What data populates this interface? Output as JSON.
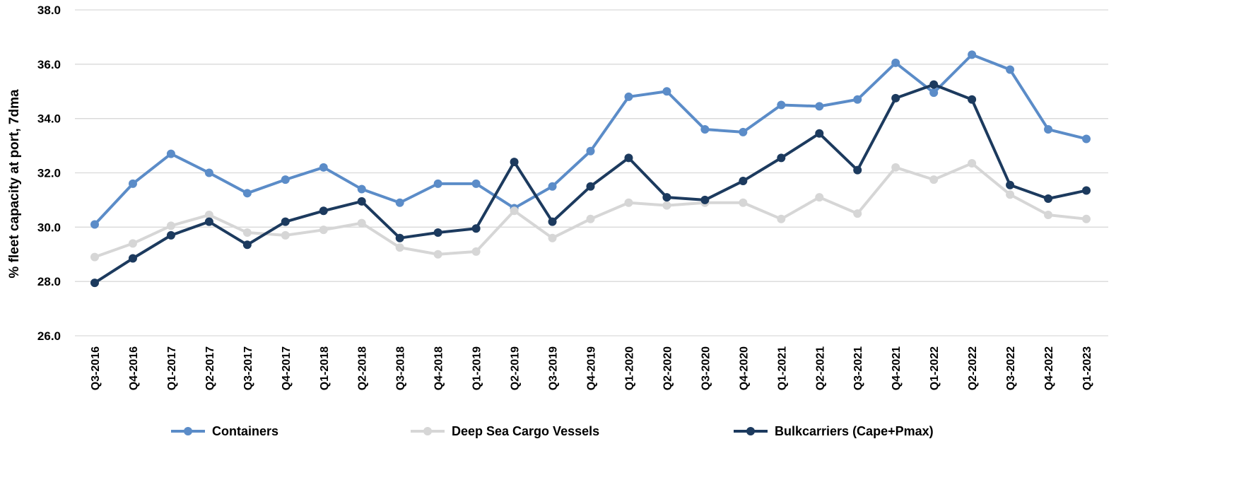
{
  "chart_data": {
    "type": "line",
    "title": "",
    "xlabel": "",
    "ylabel": "% fleet capacity  at port, 7dma",
    "ylim": [
      26.0,
      38.0
    ],
    "yticks": [
      "26.0",
      "28.0",
      "30.0",
      "32.0",
      "34.0",
      "36.0",
      "38.0"
    ],
    "grid": "horizontal",
    "legend_position": "bottom",
    "categories": [
      "Q3-2016",
      "Q4-2016",
      "Q1-2017",
      "Q2-2017",
      "Q3-2017",
      "Q4-2017",
      "Q1-2018",
      "Q2-2018",
      "Q3-2018",
      "Q4-2018",
      "Q1-2019",
      "Q2-2019",
      "Q3-2019",
      "Q4-2019",
      "Q1-2020",
      "Q2-2020",
      "Q3-2020",
      "Q4-2020",
      "Q1-2021",
      "Q2-2021",
      "Q3-2021",
      "Q4-2021",
      "Q1-2022",
      "Q2-2022",
      "Q3-2022",
      "Q4-2022",
      "Q1-2023"
    ],
    "series": [
      {
        "name": "Containers",
        "color": "#5b8cc8",
        "values": [
          30.1,
          31.6,
          32.7,
          32.0,
          31.25,
          31.75,
          32.2,
          31.4,
          30.9,
          31.6,
          31.6,
          30.7,
          31.5,
          32.8,
          34.8,
          35.0,
          33.6,
          33.5,
          34.5,
          34.45,
          34.7,
          36.05,
          34.95,
          36.35,
          35.8,
          33.6,
          33.25
        ]
      },
      {
        "name": "Deep Sea Cargo Vessels",
        "color": "#d6d6d6",
        "values": [
          28.9,
          29.4,
          30.05,
          30.45,
          29.8,
          29.7,
          29.9,
          30.15,
          29.25,
          29.0,
          29.1,
          30.6,
          29.6,
          30.3,
          30.9,
          30.8,
          30.9,
          30.9,
          30.3,
          31.1,
          30.5,
          32.2,
          31.75,
          32.35,
          31.2,
          30.45,
          30.3
        ]
      },
      {
        "name": "Bulkcarriers (Cape+Pmax)",
        "color": "#1c3a5e",
        "values": [
          27.95,
          28.85,
          29.7,
          30.2,
          29.35,
          30.2,
          30.6,
          30.95,
          29.6,
          29.8,
          29.95,
          32.4,
          30.2,
          31.5,
          32.55,
          31.1,
          31.0,
          31.7,
          32.55,
          33.45,
          32.1,
          34.75,
          35.25,
          34.7,
          31.55,
          31.05,
          31.35
        ]
      }
    ]
  }
}
